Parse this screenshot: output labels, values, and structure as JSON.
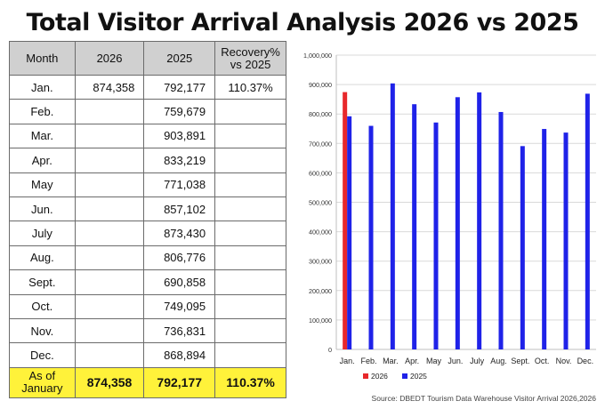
{
  "title": "Total Visitor Arrival Analysis 2026 vs 2025",
  "table": {
    "headers": [
      "Month",
      "2026",
      "2025",
      "Recovery%\nvs 2025"
    ],
    "rows": [
      {
        "month": "Jan.",
        "y2026": "874,358",
        "y2025": "792,177",
        "recovery": "110.37%"
      },
      {
        "month": "Feb.",
        "y2026": "",
        "y2025": "759,679",
        "recovery": ""
      },
      {
        "month": "Mar.",
        "y2026": "",
        "y2025": "903,891",
        "recovery": ""
      },
      {
        "month": "Apr.",
        "y2026": "",
        "y2025": "833,219",
        "recovery": ""
      },
      {
        "month": "May",
        "y2026": "",
        "y2025": "771,038",
        "recovery": ""
      },
      {
        "month": "Jun.",
        "y2026": "",
        "y2025": "857,102",
        "recovery": ""
      },
      {
        "month": "July",
        "y2026": "",
        "y2025": "873,430",
        "recovery": ""
      },
      {
        "month": "Aug.",
        "y2026": "",
        "y2025": "806,776",
        "recovery": ""
      },
      {
        "month": "Sept.",
        "y2026": "",
        "y2025": "690,858",
        "recovery": ""
      },
      {
        "month": "Oct.",
        "y2026": "",
        "y2025": "749,095",
        "recovery": ""
      },
      {
        "month": "Nov.",
        "y2026": "",
        "y2025": "736,831",
        "recovery": ""
      },
      {
        "month": "Dec.",
        "y2026": "",
        "y2025": "868,894",
        "recovery": ""
      }
    ],
    "total": {
      "month": "As of\nJanuary",
      "y2026": "874,358",
      "y2025": "792,177",
      "recovery": "110.37%"
    },
    "total_highlight_color": "#fff23a",
    "header_bg_color": "#d0d0d0"
  },
  "chart_data": {
    "type": "bar",
    "categories": [
      "Jan.",
      "Feb.",
      "Mar.",
      "Apr.",
      "May",
      "Jun.",
      "July",
      "Aug.",
      "Sept.",
      "Oct.",
      "Nov.",
      "Dec."
    ],
    "series": [
      {
        "name": "2026",
        "color": "#e8282b",
        "values": [
          874358,
          null,
          null,
          null,
          null,
          null,
          null,
          null,
          null,
          null,
          null,
          null
        ]
      },
      {
        "name": "2025",
        "color": "#1f22e8",
        "values": [
          792177,
          759679,
          903891,
          833219,
          771038,
          857102,
          873430,
          806776,
          690858,
          749095,
          736831,
          868894
        ]
      }
    ],
    "ylim": [
      0,
      1000000
    ],
    "yticks": [
      0,
      100000,
      200000,
      300000,
      400000,
      500000,
      600000,
      700000,
      800000,
      900000,
      1000000
    ],
    "ytick_labels": [
      "0",
      "100,000",
      "200,000",
      "300,000",
      "400,000",
      "500,000",
      "600,000",
      "700,000",
      "800,000",
      "900,000",
      "1,000,000"
    ],
    "grid": true,
    "legend_position": "bottom-left"
  },
  "source": "Source: DBEDT Tourism Data Warehouse Visitor Arrival 2026,2026"
}
